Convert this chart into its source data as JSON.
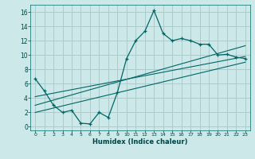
{
  "title": "",
  "xlabel": "Humidex (Indice chaleur)",
  "background_color": "#cce8e8",
  "grid_color": "#aacccc",
  "line_color": "#006666",
  "xlim": [
    -0.5,
    23.5
  ],
  "ylim": [
    -0.5,
    17.0
  ],
  "xticks": [
    0,
    1,
    2,
    3,
    4,
    5,
    6,
    7,
    8,
    9,
    10,
    11,
    12,
    13,
    14,
    15,
    16,
    17,
    18,
    19,
    20,
    21,
    22,
    23
  ],
  "yticks": [
    0,
    2,
    4,
    6,
    8,
    10,
    12,
    14,
    16
  ],
  "main_x": [
    0,
    1,
    2,
    3,
    4,
    5,
    6,
    7,
    8,
    9,
    10,
    11,
    12,
    13,
    14,
    15,
    16,
    17,
    18,
    19,
    20,
    21,
    22,
    23
  ],
  "main_y": [
    6.7,
    5.0,
    3.0,
    2.0,
    2.3,
    0.5,
    0.4,
    2.0,
    1.3,
    4.8,
    9.5,
    12.0,
    13.3,
    16.2,
    13.0,
    12.0,
    12.3,
    12.0,
    11.5,
    11.5,
    10.0,
    10.1,
    9.7,
    9.5
  ],
  "line1_x": [
    0,
    23
  ],
  "line1_y": [
    3.0,
    11.3
  ],
  "line2_x": [
    0,
    23
  ],
  "line2_y": [
    4.2,
    9.8
  ],
  "line3_x": [
    0,
    23
  ],
  "line3_y": [
    2.0,
    9.0
  ]
}
